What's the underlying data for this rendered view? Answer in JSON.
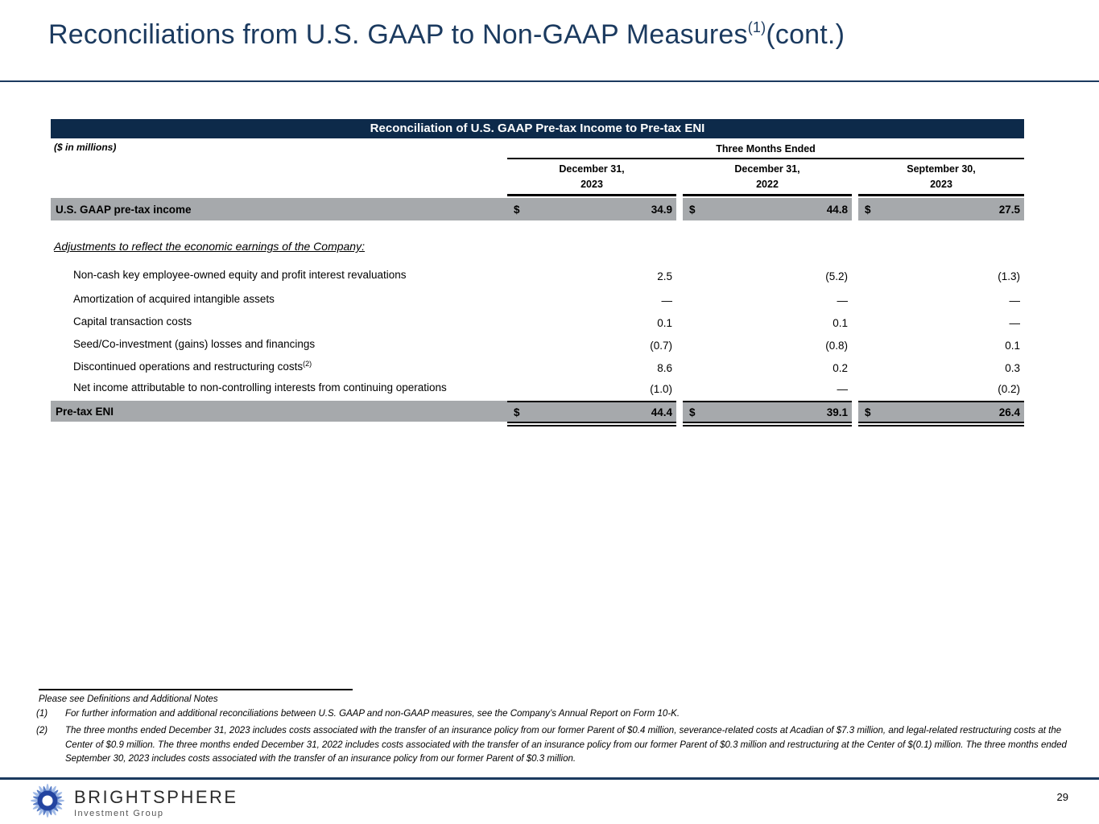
{
  "title": {
    "main": "Reconciliations from U.S. GAAP to Non-GAAP Measures",
    "superscript": "(1)",
    "suffix": "(cont.)"
  },
  "table": {
    "banner": "Reconciliation of U.S. GAAP Pre-tax Income to Pre-tax ENI",
    "units_label": "($ in millions)",
    "period_label": "Three Months Ended",
    "columns": [
      {
        "line1": "December 31,",
        "line2": "2023"
      },
      {
        "line1": "December 31,",
        "line2": "2022"
      },
      {
        "line1": "September 30,",
        "line2": "2023"
      }
    ],
    "gaap_row": {
      "label": "U.S. GAAP pre-tax income",
      "currency": "$",
      "values": [
        "34.9",
        "44.8",
        "27.5"
      ]
    },
    "adjustments_heading": "Adjustments to reflect the economic earnings of the Company:",
    "adjustment_rows": [
      {
        "label": "Non-cash key employee-owned equity and profit interest revaluations",
        "values": [
          "2.5",
          "(5.2)",
          "(1.3)"
        ]
      },
      {
        "label": "Amortization of acquired intangible assets",
        "values": [
          "—",
          "—",
          "—"
        ]
      },
      {
        "label": "Capital transaction costs",
        "values": [
          "0.1",
          "0.1",
          "—"
        ]
      },
      {
        "label": "Seed/Co-investment (gains) losses and financings",
        "values": [
          "(0.7)",
          "(0.8)",
          "0.1"
        ]
      },
      {
        "label": "Discontinued operations and restructuring costs",
        "superscript": "(2)",
        "values": [
          "8.6",
          "0.2",
          "0.3"
        ]
      },
      {
        "label": "Net income attributable to non-controlling interests from continuing operations",
        "values": [
          "(1.0)",
          "—",
          "(0.2)"
        ]
      }
    ],
    "eni_row": {
      "label": "Pre-tax ENI",
      "currency": "$",
      "values": [
        "44.4",
        "39.1",
        "26.4"
      ]
    }
  },
  "footnotes": {
    "intro": "Please see Definitions and Additional Notes",
    "items": [
      {
        "marker": "(1)",
        "text": "For further information and additional reconciliations between U.S. GAAP and non-GAAP measures, see the Company’s Annual Report on Form 10-K."
      },
      {
        "marker": "(2)",
        "text": "The three months ended December 31, 2023 includes costs associated with the transfer of an insurance policy from our former Parent of $0.4 million, severance-related costs at Acadian of $7.3 million, and legal-related restructuring costs at the Center of $0.9 million. The three months ended December 31, 2022 includes costs associated with the transfer of an insurance policy from our former Parent of $0.3 million and restructuring at the Center of $(0.1) million. The three months ended September 30, 2023 includes costs associated with the transfer of an insurance policy from our former Parent of $0.3 million."
      }
    ]
  },
  "footer": {
    "brand": "BRIGHTSPHERE",
    "brand_sub": "Investment Group",
    "page_number": "29"
  },
  "colors": {
    "navy": "#0d2a4a",
    "title_navy": "#1b3a5f",
    "row_gray": "#a6a9ac",
    "logo_blue": "#2344a0",
    "logo_light_blue": "#9fb9e6"
  }
}
